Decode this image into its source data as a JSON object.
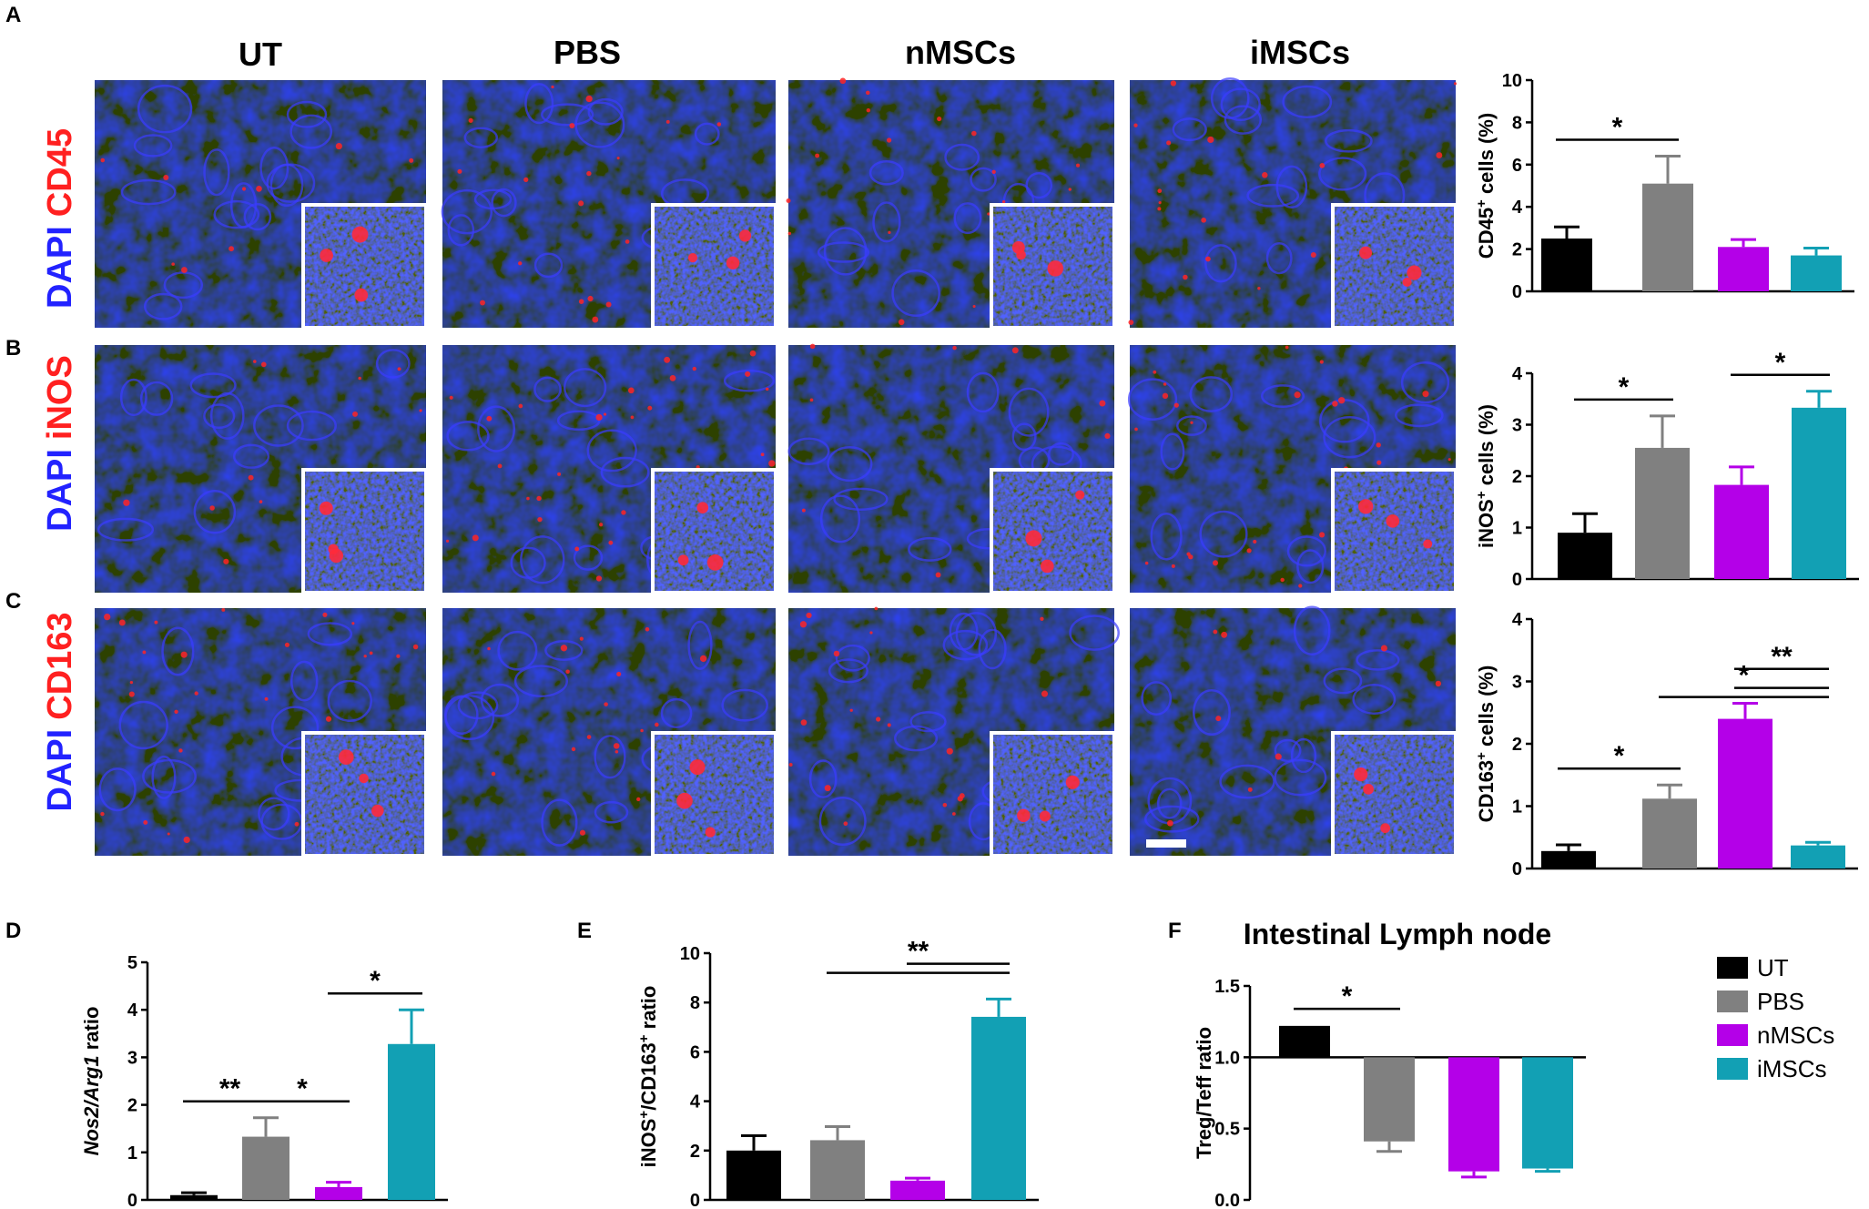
{
  "panel_labels": [
    "A",
    "B",
    "C",
    "D",
    "E",
    "F"
  ],
  "column_titles": [
    "UT",
    "PBS",
    "nMSCs",
    "iMSCs"
  ],
  "row_stains": [
    {
      "counter": "DAPI",
      "marker": "CD45"
    },
    {
      "counter": "DAPI",
      "marker": "iNOS"
    },
    {
      "counter": "DAPI",
      "marker": "CD163"
    }
  ],
  "colors": {
    "UT": "#000000",
    "PBS": "#808080",
    "nMSCs": "#b400e8",
    "iMSCs": "#12a0b4",
    "dapi": "#2222ff",
    "marker": "#ff2020"
  },
  "legend": {
    "items": [
      "UT",
      "PBS",
      "nMSCs",
      "iMSCs"
    ]
  },
  "chart_data": [
    {
      "id": "A",
      "type": "bar",
      "categories": [
        "UT",
        "PBS",
        "nMSCs",
        "iMSCs"
      ],
      "values": [
        2.5,
        5.1,
        2.1,
        1.7
      ],
      "errors": [
        0.55,
        1.3,
        0.35,
        0.35
      ],
      "ylabel_parts": [
        "CD45",
        "+",
        " cells (%)"
      ],
      "ylim": [
        0,
        10
      ],
      "yticks": [
        "0",
        "2",
        "4",
        "6",
        "8",
        "10"
      ],
      "significance": [
        {
          "from": 0,
          "to": 1,
          "label": "*"
        }
      ]
    },
    {
      "id": "B",
      "type": "bar",
      "categories": [
        "UT",
        "PBS",
        "nMSCs",
        "iMSCs"
      ],
      "values": [
        0.9,
        2.55,
        1.83,
        3.33
      ],
      "errors": [
        0.37,
        0.62,
        0.35,
        0.32
      ],
      "ylabel_parts": [
        "iNOS",
        "+",
        " cells (%)"
      ],
      "ylim": [
        0,
        4
      ],
      "yticks": [
        "0",
        "1",
        "2",
        "3",
        "4"
      ],
      "significance": [
        {
          "from": 0,
          "to": 1,
          "label": "*"
        },
        {
          "from": 2,
          "to": 3,
          "label": "*"
        }
      ]
    },
    {
      "id": "C",
      "type": "bar",
      "categories": [
        "UT",
        "PBS",
        "nMSCs",
        "iMSCs"
      ],
      "values": [
        0.28,
        1.12,
        2.4,
        0.37
      ],
      "errors": [
        0.1,
        0.22,
        0.25,
        0.05
      ],
      "ylabel_parts": [
        "CD163",
        "+",
        " cells (%)"
      ],
      "ylim": [
        0,
        4
      ],
      "yticks": [
        "0",
        "1",
        "2",
        "3",
        "4"
      ],
      "significance": [
        {
          "from": 0,
          "to": 1,
          "label": "*"
        },
        {
          "from": 1,
          "to": 3,
          "label": "*",
          "double": true
        },
        {
          "from": 2,
          "to": 3,
          "label": "**"
        }
      ]
    },
    {
      "id": "D",
      "type": "bar",
      "categories": [
        "UT",
        "PBS",
        "nMSCs",
        "iMSCs"
      ],
      "values": [
        0.1,
        1.33,
        0.27,
        3.28
      ],
      "errors": [
        0.05,
        0.4,
        0.1,
        0.72
      ],
      "ylabel_parts": [
        "Nos2/Arg1",
        "",
        " ratio"
      ],
      "ylim": [
        0,
        5
      ],
      "yticks": [
        "0",
        "1",
        "2",
        "3",
        "4",
        "5"
      ],
      "significance": [
        {
          "from": 0,
          "to": 1,
          "label": "**"
        },
        {
          "from": 1,
          "to": 2,
          "label": "*"
        },
        {
          "from": 2,
          "to": 3,
          "label": "*"
        }
      ]
    },
    {
      "id": "E",
      "type": "bar",
      "categories": [
        "UT",
        "PBS",
        "nMSCs",
        "iMSCs"
      ],
      "values": [
        2.0,
        2.42,
        0.78,
        7.42
      ],
      "errors": [
        0.6,
        0.55,
        0.1,
        0.72
      ],
      "ylabel_parts": [
        "iNOS",
        "+",
        "/CD163",
        "+",
        " ratio"
      ],
      "ylim": [
        0,
        10
      ],
      "yticks": [
        "0",
        "2",
        "4",
        "6",
        "8",
        "10"
      ],
      "significance": [
        {
          "from": 1,
          "to": 3,
          "label": "**",
          "double": true
        }
      ]
    },
    {
      "id": "F",
      "type": "bar",
      "title": "Intestinal Lymph node",
      "categories": [
        "UT",
        "PBS",
        "nMSCs",
        "iMSCs"
      ],
      "values": [
        1.22,
        0.41,
        0.2,
        0.22
      ],
      "errors": [
        0.0,
        0.07,
        0.04,
        0.02
      ],
      "baseline": 1.0,
      "ylabel_parts": [
        "Treg/Teff ratio"
      ],
      "ylim": [
        0,
        1.5
      ],
      "yticks": [
        "0.0",
        "0.5",
        "1.0",
        "1.5"
      ],
      "significance": [
        {
          "from": 0,
          "to": 1,
          "label": "*"
        }
      ]
    }
  ]
}
